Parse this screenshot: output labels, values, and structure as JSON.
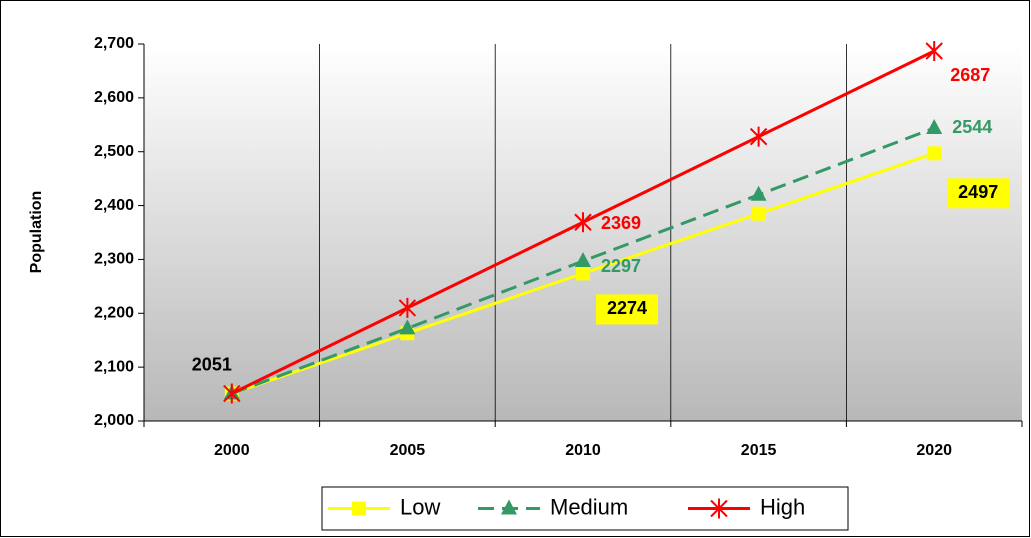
{
  "chart_data": {
    "type": "line",
    "y_label": "Population",
    "categories": [
      "2000",
      "2005",
      "2010",
      "2015",
      "2020"
    ],
    "series": [
      {
        "name": "Low",
        "color": "#ffff00",
        "marker": "square",
        "dash": false,
        "values": [
          2051,
          2163,
          2274,
          2385,
          2497
        ],
        "label_points": [
          0,
          2,
          4
        ],
        "label_box": [
          false,
          true,
          true
        ],
        "label_color": "#000000"
      },
      {
        "name": "Medium",
        "color": "#339966",
        "marker": "triangle",
        "dash": true,
        "values": [
          2051,
          2172,
          2297,
          2420,
          2544
        ],
        "label_points": [
          2,
          4
        ],
        "label_box": [
          false,
          false
        ],
        "label_color": "#339966"
      },
      {
        "name": "High",
        "color": "#ff0000",
        "marker": "star",
        "dash": false,
        "values": [
          2051,
          2210,
          2369,
          2528,
          2687
        ],
        "label_points": [
          2,
          4
        ],
        "label_box": [
          false,
          false
        ],
        "label_color": "#ff0000"
      }
    ],
    "ylim": [
      2000,
      2700
    ],
    "yticks": [
      {
        "value": 2000,
        "label": "2,000"
      },
      {
        "value": 2100,
        "label": "2,100"
      },
      {
        "value": 2200,
        "label": "2,200"
      },
      {
        "value": 2300,
        "label": "2,300"
      },
      {
        "value": 2400,
        "label": "2,400"
      },
      {
        "value": 2500,
        "label": "2,500"
      },
      {
        "value": 2600,
        "label": "2,600"
      },
      {
        "value": 2700,
        "label": "2,700"
      }
    ],
    "grid": true,
    "legend": "bottom"
  }
}
